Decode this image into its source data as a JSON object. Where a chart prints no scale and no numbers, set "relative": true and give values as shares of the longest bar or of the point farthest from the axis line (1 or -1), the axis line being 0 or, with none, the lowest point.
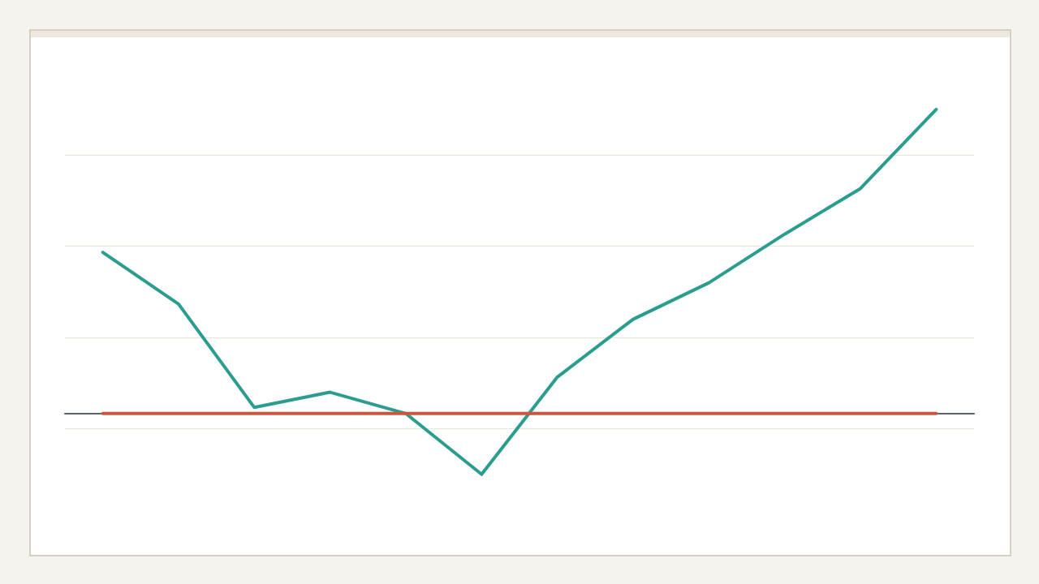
{
  "chart_data": {
    "type": "line",
    "relative": true,
    "categories": [
      null,
      null,
      null,
      null,
      null,
      null,
      null,
      null,
      null,
      null,
      null,
      null
    ],
    "series": [
      {
        "color": "#2a9d8f",
        "values": [
          0.53,
          0.36,
          0.02,
          0.07,
          0,
          -0.2,
          0.12,
          0.31,
          0.43,
          0.59,
          0.74,
          1
        ]
      },
      {
        "color": "#cc553d",
        "values": [
          0,
          0,
          0,
          0,
          0,
          0,
          0,
          0,
          0,
          0,
          0,
          0
        ]
      }
    ],
    "grid": "y",
    "marker": "none",
    "line_style": "solid"
  }
}
